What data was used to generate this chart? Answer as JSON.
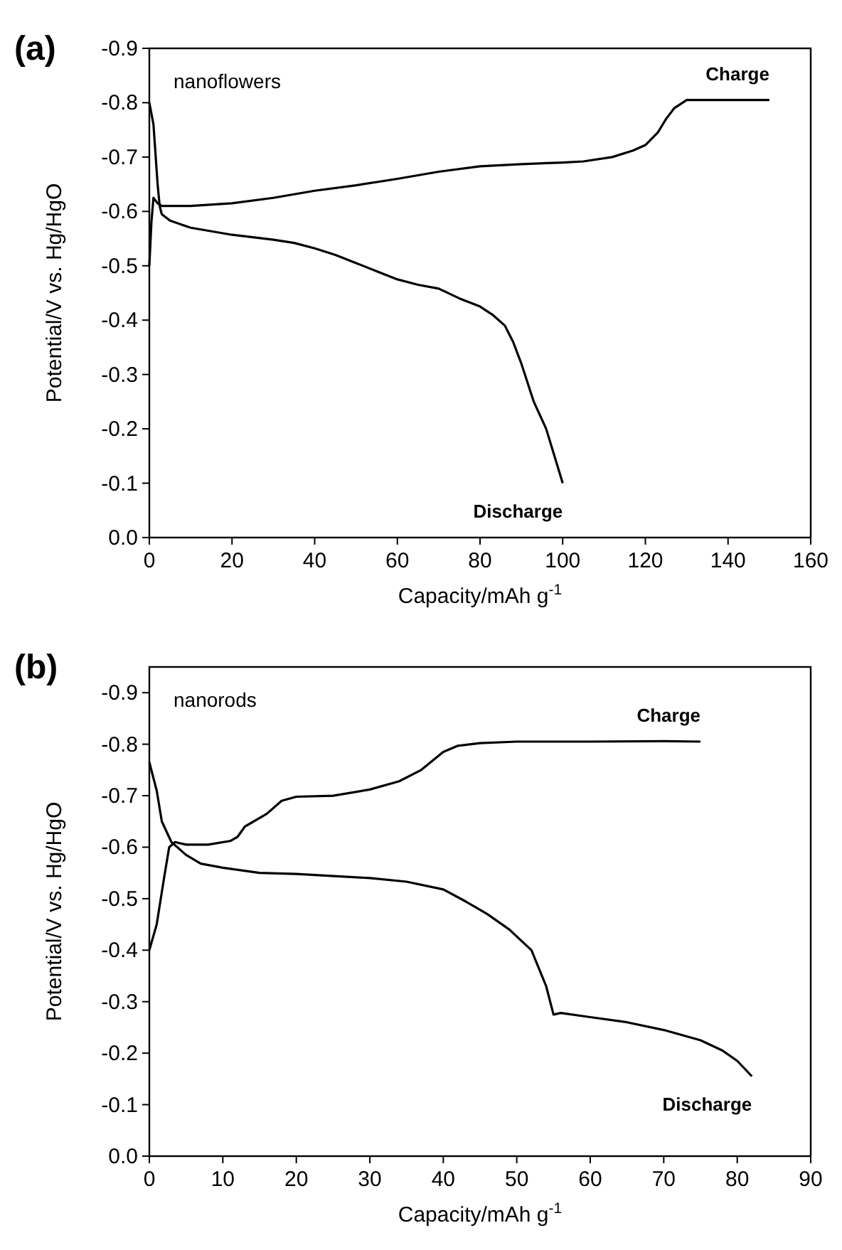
{
  "chart_data": [
    {
      "type": "line",
      "title": "(a)",
      "xlabel": "Capacity/mAh g$^{-1}$",
      "ylabel": "Potential/V vs. Hg/HgO",
      "annotations": [
        "nanoflowers"
      ],
      "xlim": [
        0,
        160
      ],
      "xticks": [
        0,
        20,
        40,
        60,
        80,
        100,
        120,
        140,
        160
      ],
      "ylim": [
        0,
        -0.9
      ],
      "yticks": [
        {
          "value": 0,
          "label": "0.0"
        },
        -0.1,
        -0.2,
        -0.3,
        -0.4,
        -0.5,
        -0.6,
        -0.7,
        -0.8,
        -0.9
      ],
      "grid": false,
      "series": [
        {
          "name": "Charge",
          "color": "#000000",
          "x": [
            0,
            0.5,
            1,
            2,
            3,
            10,
            20,
            30,
            40,
            50,
            60,
            70,
            80,
            90,
            100,
            105,
            112,
            117,
            120,
            123,
            125,
            127,
            130,
            140,
            150
          ],
          "values": [
            -0.5,
            -0.58,
            -0.625,
            -0.615,
            -0.61,
            -0.61,
            -0.615,
            -0.625,
            -0.638,
            -0.648,
            -0.66,
            -0.673,
            -0.683,
            -0.687,
            -0.69,
            -0.692,
            -0.7,
            -0.712,
            -0.722,
            -0.745,
            -0.77,
            -0.79,
            -0.805,
            -0.805,
            -0.805
          ]
        },
        {
          "name": "Discharge",
          "color": "#000000",
          "x": [
            0,
            1,
            2,
            2.5,
            3,
            5,
            10,
            20,
            30,
            35,
            40,
            45,
            50,
            55,
            60,
            65,
            70,
            75,
            80,
            83,
            86,
            88,
            90,
            93,
            96,
            98,
            100
          ],
          "values": [
            -0.8,
            -0.76,
            -0.65,
            -0.61,
            -0.595,
            -0.583,
            -0.57,
            -0.557,
            -0.548,
            -0.542,
            -0.532,
            -0.52,
            -0.505,
            -0.49,
            -0.475,
            -0.465,
            -0.458,
            -0.44,
            -0.425,
            -0.41,
            -0.39,
            -0.36,
            -0.32,
            -0.25,
            -0.2,
            -0.15,
            -0.1
          ]
        }
      ]
    },
    {
      "type": "line",
      "title": "(b)",
      "xlabel": "Capacity/mAh g$^{-1}$",
      "ylabel": "Potential/V vs. Hg/HgO",
      "annotations": [
        "nanorods"
      ],
      "xlim": [
        0,
        90
      ],
      "xticks": [
        0,
        10,
        20,
        30,
        40,
        50,
        60,
        70,
        80,
        90
      ],
      "ylim": [
        0,
        -0.95
      ],
      "yticks": [
        {
          "value": 0,
          "label": "0.0"
        },
        -0.1,
        -0.2,
        -0.3,
        -0.4,
        -0.5,
        -0.6,
        -0.7,
        -0.8,
        -0.9
      ],
      "grid": false,
      "series": [
        {
          "name": "Charge",
          "color": "#000000",
          "x": [
            0,
            1,
            2,
            2.7,
            3.5,
            5,
            8,
            11,
            12,
            13,
            16,
            18,
            20,
            25,
            30,
            34,
            37,
            40,
            42,
            45,
            50,
            60,
            70,
            75
          ],
          "values": [
            -0.4,
            -0.45,
            -0.54,
            -0.6,
            -0.61,
            -0.605,
            -0.605,
            -0.612,
            -0.62,
            -0.64,
            -0.665,
            -0.69,
            -0.698,
            -0.7,
            -0.712,
            -0.728,
            -0.75,
            -0.785,
            -0.797,
            -0.802,
            -0.805,
            -0.805,
            -0.806,
            -0.805
          ]
        },
        {
          "name": "Discharge",
          "color": "#000000",
          "x": [
            0,
            1,
            1.7,
            3,
            5,
            7,
            10,
            15,
            20,
            30,
            35,
            40,
            43,
            46,
            49,
            52,
            54,
            55,
            56,
            60,
            65,
            70,
            75,
            78,
            80,
            82
          ],
          "values": [
            -0.765,
            -0.71,
            -0.65,
            -0.61,
            -0.585,
            -0.568,
            -0.56,
            -0.55,
            -0.548,
            -0.54,
            -0.533,
            -0.518,
            -0.495,
            -0.47,
            -0.44,
            -0.4,
            -0.33,
            -0.275,
            -0.278,
            -0.27,
            -0.26,
            -0.245,
            -0.225,
            -0.205,
            -0.185,
            -0.155
          ]
        }
      ]
    }
  ]
}
